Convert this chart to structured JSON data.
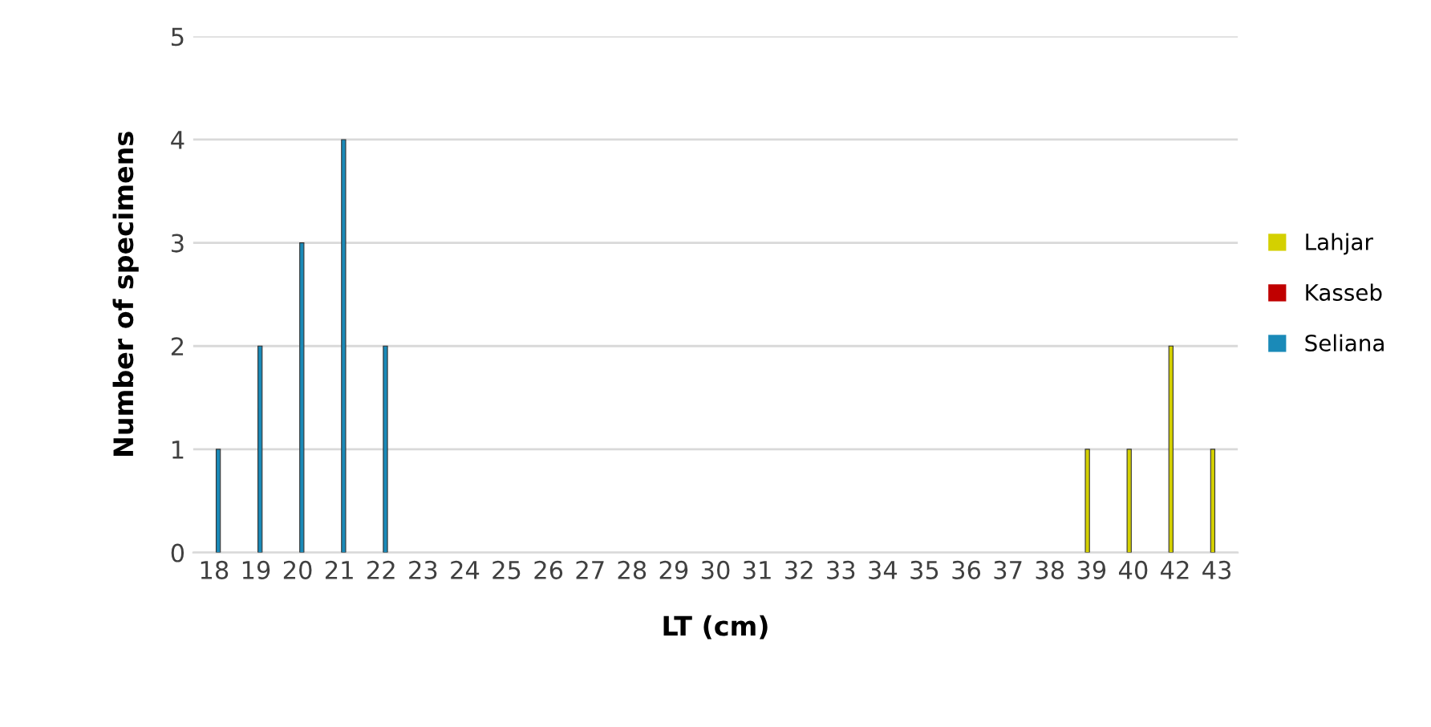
{
  "chart_data": {
    "type": "bar",
    "xlabel": "LT (cm)",
    "ylabel": "Number of specimens",
    "categories": [
      "18",
      "19",
      "20",
      "21",
      "22",
      "23",
      "24",
      "25",
      "26",
      "27",
      "28",
      "29",
      "30",
      "31",
      "32",
      "33",
      "34",
      "35",
      "36",
      "37",
      "38",
      "39",
      "40",
      "42",
      "43"
    ],
    "series": [
      {
        "name": "Lahjar",
        "color": "#d4d000",
        "values": [
          null,
          null,
          null,
          null,
          null,
          null,
          null,
          null,
          null,
          null,
          null,
          null,
          null,
          null,
          null,
          null,
          null,
          null,
          null,
          null,
          null,
          1,
          1,
          2,
          1
        ]
      },
      {
        "name": "Kasseb",
        "color": "#c00000",
        "values": [
          null,
          null,
          null,
          null,
          null,
          null,
          null,
          null,
          null,
          null,
          null,
          null,
          null,
          null,
          null,
          null,
          null,
          null,
          null,
          null,
          null,
          null,
          null,
          null,
          null
        ]
      },
      {
        "name": "Seliana",
        "color": "#1a8ab8",
        "values": [
          1,
          2,
          3,
          4,
          2,
          null,
          null,
          null,
          null,
          null,
          null,
          null,
          null,
          null,
          null,
          null,
          null,
          null,
          null,
          null,
          null,
          null,
          null,
          null,
          null
        ]
      }
    ],
    "ylim": [
      0,
      5
    ],
    "yticks": [
      0,
      1,
      2,
      3,
      4,
      5
    ],
    "grid": "y",
    "legend": "right"
  }
}
